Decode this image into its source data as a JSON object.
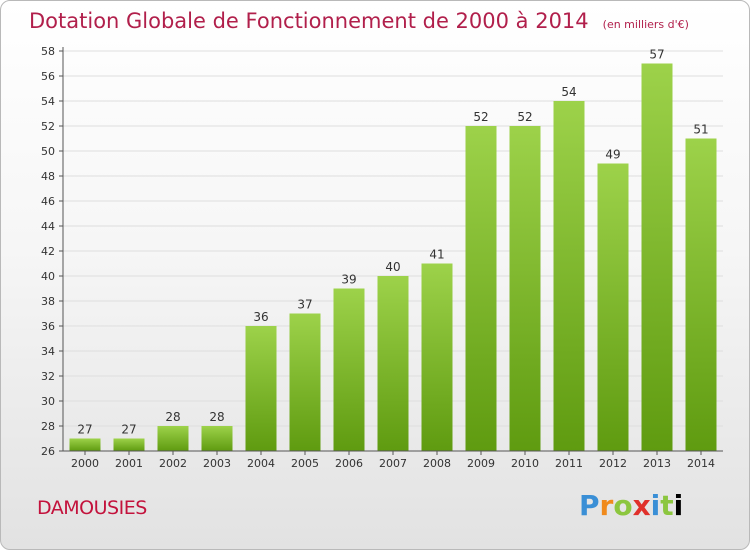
{
  "header": {
    "title": "Dotation Globale de Fonctionnement de 2000 à 2014",
    "subtitle": "(en milliers d'€)"
  },
  "footer": {
    "commune": "DAMOUSIES",
    "logo_letters": [
      "P",
      "r",
      "o",
      "x",
      "i",
      "t",
      "i"
    ]
  },
  "colors": {
    "bar_light": "#9dd24a",
    "bar_dark": "#5f9b10",
    "title": "#b11f4b",
    "grid": "#dedede"
  },
  "chart_data": {
    "type": "bar",
    "title": "Dotation Globale de Fonctionnement de 2000 à 2014",
    "subtitle": "(en milliers d'€)",
    "xlabel": "",
    "ylabel": "",
    "categories": [
      "2000",
      "2001",
      "2002",
      "2003",
      "2004",
      "2005",
      "2006",
      "2007",
      "2008",
      "2009",
      "2010",
      "2011",
      "2012",
      "2013",
      "2014"
    ],
    "values": [
      27,
      27,
      28,
      28,
      36,
      37,
      39,
      40,
      41,
      52,
      52,
      54,
      49,
      57,
      51
    ],
    "ylim": [
      26,
      58
    ],
    "yticks": [
      26,
      28,
      30,
      32,
      34,
      36,
      38,
      40,
      42,
      44,
      46,
      48,
      50,
      52,
      54,
      56,
      58
    ],
    "grid": true,
    "legend": "none"
  }
}
